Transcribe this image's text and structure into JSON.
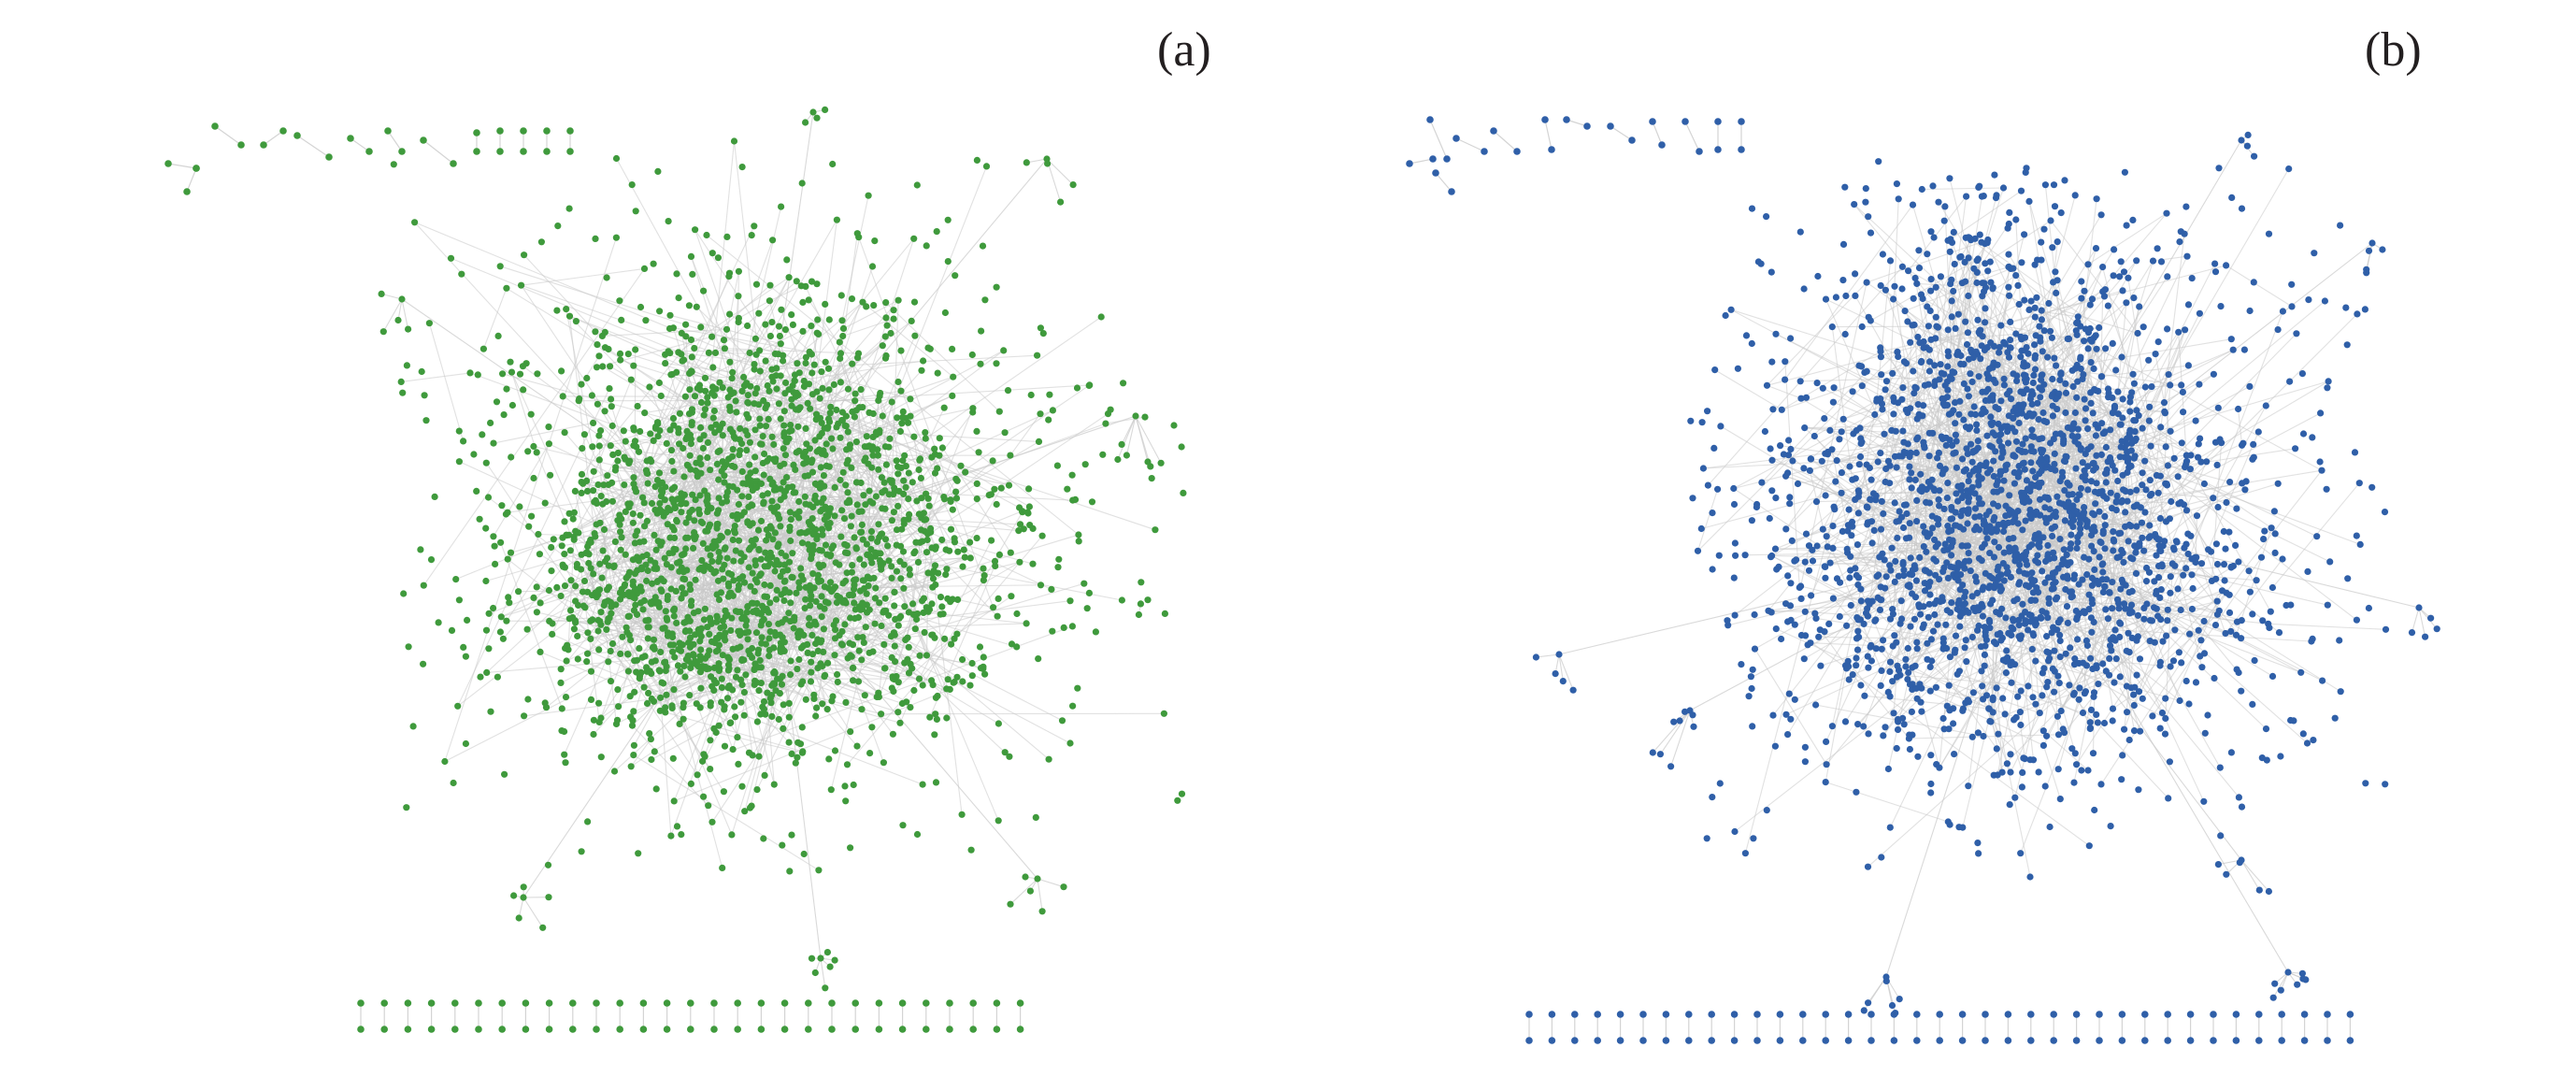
{
  "figure": {
    "panels": [
      {
        "id": "a",
        "label": "(a)",
        "node_color": "#3f9a3c",
        "edge_color": "#c9c9c9"
      },
      {
        "id": "b",
        "label": "(b)",
        "node_color": "#2f5fa8",
        "edge_color": "#c9c9c9"
      }
    ]
  }
}
